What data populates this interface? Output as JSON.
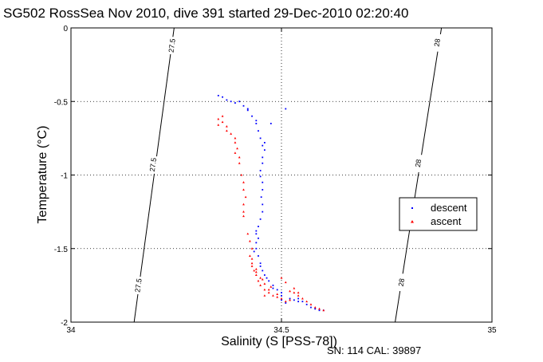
{
  "chart_data": {
    "type": "scatter",
    "title": "SG502 RossSea Nov 2010, dive 391 started 29-Dec-2010 02:20:40",
    "xlabel": "Salinity (S [PSS-78])",
    "ylabel": "Temperature (°C)",
    "xlim": [
      34,
      35
    ],
    "ylim": [
      -2,
      0
    ],
    "x_ticks": [
      "34",
      "34.5",
      "35"
    ],
    "y_ticks": [
      "0",
      "-0.5",
      "-1",
      "-1.5",
      "-2"
    ],
    "x_tick_values": [
      34,
      34.5,
      35
    ],
    "y_tick_values": [
      0,
      -0.5,
      -1,
      -1.5,
      -2
    ],
    "grid": "dotted",
    "legend_position": "right",
    "annotation": "SN: 114  CAL: 39897",
    "isopycnals": [
      {
        "label": "27.5",
        "points": [
          [
            34.245,
            0
          ],
          [
            34.15,
            -2
          ]
        ],
        "label_positions": [
          [
            34.24,
            -0.12
          ],
          [
            34.195,
            -0.93
          ],
          [
            34.16,
            -1.75
          ]
        ]
      },
      {
        "label": "28",
        "points": [
          [
            34.88,
            0
          ],
          [
            34.77,
            -2
          ]
        ],
        "label_positions": [
          [
            34.87,
            -0.1
          ],
          [
            34.825,
            -0.92
          ],
          [
            34.785,
            -1.73
          ]
        ]
      }
    ],
    "series": [
      {
        "name": "descent",
        "color": "#0000ff",
        "marker": "dot",
        "points": [
          [
            34.35,
            -0.46
          ],
          [
            34.36,
            -0.47
          ],
          [
            34.37,
            -0.49
          ],
          [
            34.38,
            -0.5
          ],
          [
            34.39,
            -0.51
          ],
          [
            34.4,
            -0.5
          ],
          [
            34.41,
            -0.53
          ],
          [
            34.42,
            -0.56
          ],
          [
            34.43,
            -0.6
          ],
          [
            34.44,
            -0.65
          ],
          [
            34.445,
            -0.7
          ],
          [
            34.45,
            -0.75
          ],
          [
            34.455,
            -0.8
          ],
          [
            34.46,
            -0.83
          ],
          [
            34.455,
            -0.88
          ],
          [
            34.455,
            -0.92
          ],
          [
            34.45,
            -0.97
          ],
          [
            34.45,
            -1.01
          ],
          [
            34.455,
            -1.05
          ],
          [
            34.455,
            -1.1
          ],
          [
            34.452,
            -1.15
          ],
          [
            34.455,
            -1.2
          ],
          [
            34.455,
            -1.25
          ],
          [
            34.45,
            -1.3
          ],
          [
            34.445,
            -1.35
          ],
          [
            34.44,
            -1.38
          ],
          [
            34.44,
            -1.4
          ],
          [
            34.445,
            -1.43
          ],
          [
            34.44,
            -1.46
          ],
          [
            34.44,
            -1.5
          ],
          [
            34.445,
            -1.55
          ],
          [
            34.45,
            -1.6
          ],
          [
            34.455,
            -1.65
          ],
          [
            34.46,
            -1.68
          ],
          [
            34.47,
            -1.72
          ],
          [
            34.48,
            -1.75
          ],
          [
            34.49,
            -1.78
          ],
          [
            34.5,
            -1.8
          ],
          [
            34.5,
            -1.85
          ],
          [
            34.51,
            -1.87
          ],
          [
            34.53,
            -1.85
          ],
          [
            34.54,
            -1.84
          ],
          [
            34.55,
            -1.86
          ],
          [
            34.56,
            -1.88
          ],
          [
            34.57,
            -1.9
          ],
          [
            34.58,
            -1.91
          ],
          [
            34.59,
            -1.92
          ],
          [
            34.6,
            -1.92
          ],
          [
            34.42,
            -0.55
          ],
          [
            34.44,
            -0.63
          ],
          [
            34.435,
            -1.52
          ],
          [
            34.45,
            -1.62
          ],
          [
            34.465,
            -1.7
          ],
          [
            34.48,
            -1.77
          ],
          [
            34.5,
            -1.82
          ],
          [
            34.52,
            -1.84
          ],
          [
            34.54,
            -1.86
          ],
          [
            34.51,
            -0.55
          ],
          [
            34.475,
            -0.65
          ],
          [
            34.46,
            -0.78
          ]
        ]
      },
      {
        "name": "ascent",
        "color": "#ff0000",
        "marker": "triangle",
        "points": [
          [
            34.35,
            -0.62
          ],
          [
            34.36,
            -0.6
          ],
          [
            34.36,
            -0.64
          ],
          [
            34.35,
            -0.66
          ],
          [
            34.37,
            -0.67
          ],
          [
            34.39,
            -0.75
          ],
          [
            34.39,
            -0.78
          ],
          [
            34.395,
            -0.82
          ],
          [
            34.39,
            -0.85
          ],
          [
            34.4,
            -0.88
          ],
          [
            34.41,
            -1.05
          ],
          [
            34.41,
            -1.1
          ],
          [
            34.415,
            -1.15
          ],
          [
            34.41,
            -1.2
          ],
          [
            34.41,
            -1.25
          ],
          [
            34.41,
            -1.28
          ],
          [
            34.42,
            -1.4
          ],
          [
            34.425,
            -1.45
          ],
          [
            34.43,
            -1.5
          ],
          [
            34.425,
            -1.55
          ],
          [
            34.43,
            -1.6
          ],
          [
            34.435,
            -1.65
          ],
          [
            34.44,
            -1.68
          ],
          [
            34.445,
            -1.72
          ],
          [
            34.45,
            -1.75
          ],
          [
            34.46,
            -1.78
          ],
          [
            34.47,
            -1.8
          ],
          [
            34.48,
            -1.82
          ],
          [
            34.49,
            -1.83
          ],
          [
            34.5,
            -1.84
          ],
          [
            34.51,
            -1.86
          ],
          [
            34.52,
            -1.85
          ],
          [
            34.53,
            -1.8
          ],
          [
            34.54,
            -1.82
          ],
          [
            34.55,
            -1.84
          ],
          [
            34.56,
            -1.86
          ],
          [
            34.57,
            -1.88
          ],
          [
            34.58,
            -1.9
          ],
          [
            34.59,
            -1.91
          ],
          [
            34.6,
            -1.92
          ],
          [
            34.43,
            -1.62
          ],
          [
            34.44,
            -1.66
          ],
          [
            34.45,
            -1.7
          ],
          [
            34.46,
            -1.74
          ],
          [
            34.47,
            -1.78
          ],
          [
            34.49,
            -1.81
          ],
          [
            34.5,
            -1.7
          ],
          [
            34.51,
            -1.73
          ],
          [
            34.52,
            -1.79
          ],
          [
            34.53,
            -1.77
          ],
          [
            34.54,
            -1.8
          ],
          [
            34.37,
            -0.7
          ],
          [
            34.38,
            -0.72
          ],
          [
            34.4,
            -0.92
          ],
          [
            34.405,
            -1.0
          ],
          [
            34.43,
            -1.57
          ],
          [
            34.44,
            -1.64
          ],
          [
            34.455,
            -1.71
          ],
          [
            34.46,
            -1.82
          ],
          [
            34.475,
            -1.76
          ]
        ]
      }
    ]
  }
}
